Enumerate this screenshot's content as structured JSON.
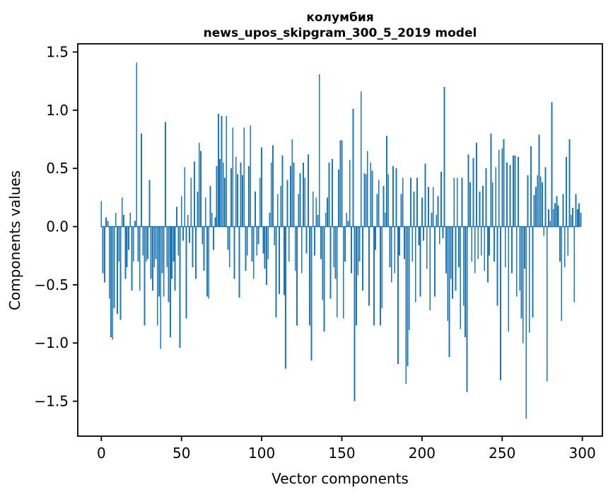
{
  "chart_data": {
    "type": "bar",
    "title": "колумбия",
    "subtitle": "news_upos_skipgram_300_5_2019 model",
    "xlabel": "Vector components",
    "ylabel": "Components values",
    "bar_color": "#1f77b4",
    "axis_color": "#000000",
    "background_color": "#ffffff",
    "grid": false,
    "legend": null,
    "n_components": 300,
    "x_tick_values": [
      0,
      50,
      100,
      150,
      200,
      250,
      300
    ],
    "x_tick_labels": [
      "0",
      "50",
      "100",
      "150",
      "200",
      "250",
      "300"
    ],
    "y_tick_values": [
      -1.5,
      -1.0,
      -0.5,
      0.0,
      0.5,
      1.0,
      1.5
    ],
    "y_tick_labels": [
      "−1.5",
      "−1.0",
      "−0.5",
      "0.0",
      "0.5",
      "1.0",
      "1.5"
    ],
    "xlim": [
      -14.7,
      312.5
    ],
    "ylim": [
      -1.8,
      1.57
    ],
    "values": [
      0.22,
      -0.4,
      -0.48,
      0.08,
      0.05,
      -0.62,
      -0.95,
      -0.97,
      -0.7,
      0.12,
      -0.75,
      -0.3,
      -0.8,
      0.25,
      0.1,
      -0.45,
      -0.35,
      -0.2,
      0.12,
      -0.55,
      -0.3,
      0.05,
      1.41,
      -0.3,
      -0.55,
      0.8,
      -0.25,
      -0.85,
      -0.3,
      -0.28,
      0.4,
      -0.45,
      -0.55,
      -0.35,
      -0.28,
      -0.85,
      -0.6,
      -1.05,
      -0.4,
      -0.6,
      0.9,
      -0.35,
      -0.65,
      -0.95,
      -0.45,
      -0.3,
      -0.55,
      0.17,
      -0.25,
      -1.04,
      0.26,
      -0.12,
      0.51,
      -0.79,
      0.1,
      -0.14,
      0.42,
      -0.35,
      0.56,
      -0.45,
      0.3,
      0.72,
      0.65,
      -0.15,
      -0.38,
      0.25,
      -0.6,
      -0.62,
      0.35,
      0.12,
      -0.2,
      0.08,
      0.52,
      0.97,
      0.58,
      0.95,
      0.55,
      0.42,
      0.95,
      -0.2,
      -0.35,
      0.5,
      0.85,
      -0.45,
      0.6,
      0.45,
      -0.61,
      0.55,
      0.44,
      0.85,
      -0.38,
      -0.25,
      0.52,
      0.87,
      -0.3,
      -0.45,
      0.3,
      -0.25,
      -0.15,
      0.42,
      0.68,
      -0.23,
      -0.36,
      -0.5,
      -0.28,
      0.12,
      0.55,
      0.7,
      -0.16,
      -0.78,
      0.28,
      -0.58,
      0.35,
      0.61,
      -0.59,
      -1.22,
      0.4,
      -0.3,
      0.52,
      0.75,
      0.55,
      -0.38,
      -0.85,
      0.28,
      0.46,
      -0.4,
      0.55,
      0.42,
      -0.23,
      0.62,
      -0.85,
      -1.15,
      0.3,
      -0.25,
      0.25,
      0.1,
      1.31,
      -0.28,
      -0.63,
      -0.9,
      0.12,
      0.25,
      0.55,
      -0.62,
      0.58,
      -0.35,
      -0.45,
      -0.78,
      0.49,
      0.74,
      0.74,
      -0.79,
      -0.3,
      0.12,
      0.05,
      0.57,
      -0.4,
      1.01,
      -1.5,
      -0.85,
      -0.42,
      -0.3,
      1.16,
      -0.55,
      0.46,
      0.45,
      0.65,
      -0.68,
      0.55,
      0.48,
      -0.85,
      -0.2,
      0.28,
      0.4,
      -0.85,
      -0.7,
      0.35,
      0.12,
      0.78,
      0.45,
      -0.35,
      -0.48,
      0.52,
      -0.4,
      0.5,
      -1.18,
      -0.25,
      0.28,
      0.42,
      -0.28,
      -1.35,
      -1.2,
      -0.89,
      0.42,
      -0.3,
      0.3,
      -0.65,
      0.42,
      -0.16,
      -0.6,
      0.25,
      -0.12,
      0.54,
      -0.36,
      0.34,
      -0.72,
      0.12,
      0.34,
      -0.6,
      0.1,
      0.26,
      -0.15,
      0.47,
      -0.1,
      1.2,
      -0.4,
      -0.81,
      -1.12,
      -0.45,
      -0.62,
      0.42,
      -0.55,
      0.42,
      -0.35,
      -0.88,
      0.42,
      -0.68,
      -0.95,
      -1.42,
      0.62,
      0.38,
      -0.3,
      0.59,
      -0.4,
      0.72,
      -0.28,
      0.3,
      -0.25,
      0.35,
      -0.38,
      0.5,
      -0.48,
      -0.25,
      0.8,
      0.38,
      -0.3,
      0.51,
      -0.68,
      0.66,
      -1.32,
      0.67,
      0.75,
      -0.35,
      0.55,
      -0.9,
      0.53,
      -0.4,
      0.61,
      0.61,
      -0.6,
      0.6,
      -0.55,
      -0.79,
      -1.0,
      -0.36,
      -1.65,
      0.44,
      -0.91,
      0.69,
      -0.78,
      0.27,
      0.34,
      0.44,
      0.79,
      0.43,
      0.38,
      -0.08,
      0.51,
      -1.33,
      0.15,
      0.05,
      1.07,
      0.15,
      0.2,
      0.26,
      0.18,
      -0.3,
      -0.81,
      0.28,
      -0.35,
      0.6,
      -0.25,
      0.75,
      0.1,
      0.16,
      -0.65,
      0.28,
      0.15,
      0.2,
      0.12
    ]
  }
}
